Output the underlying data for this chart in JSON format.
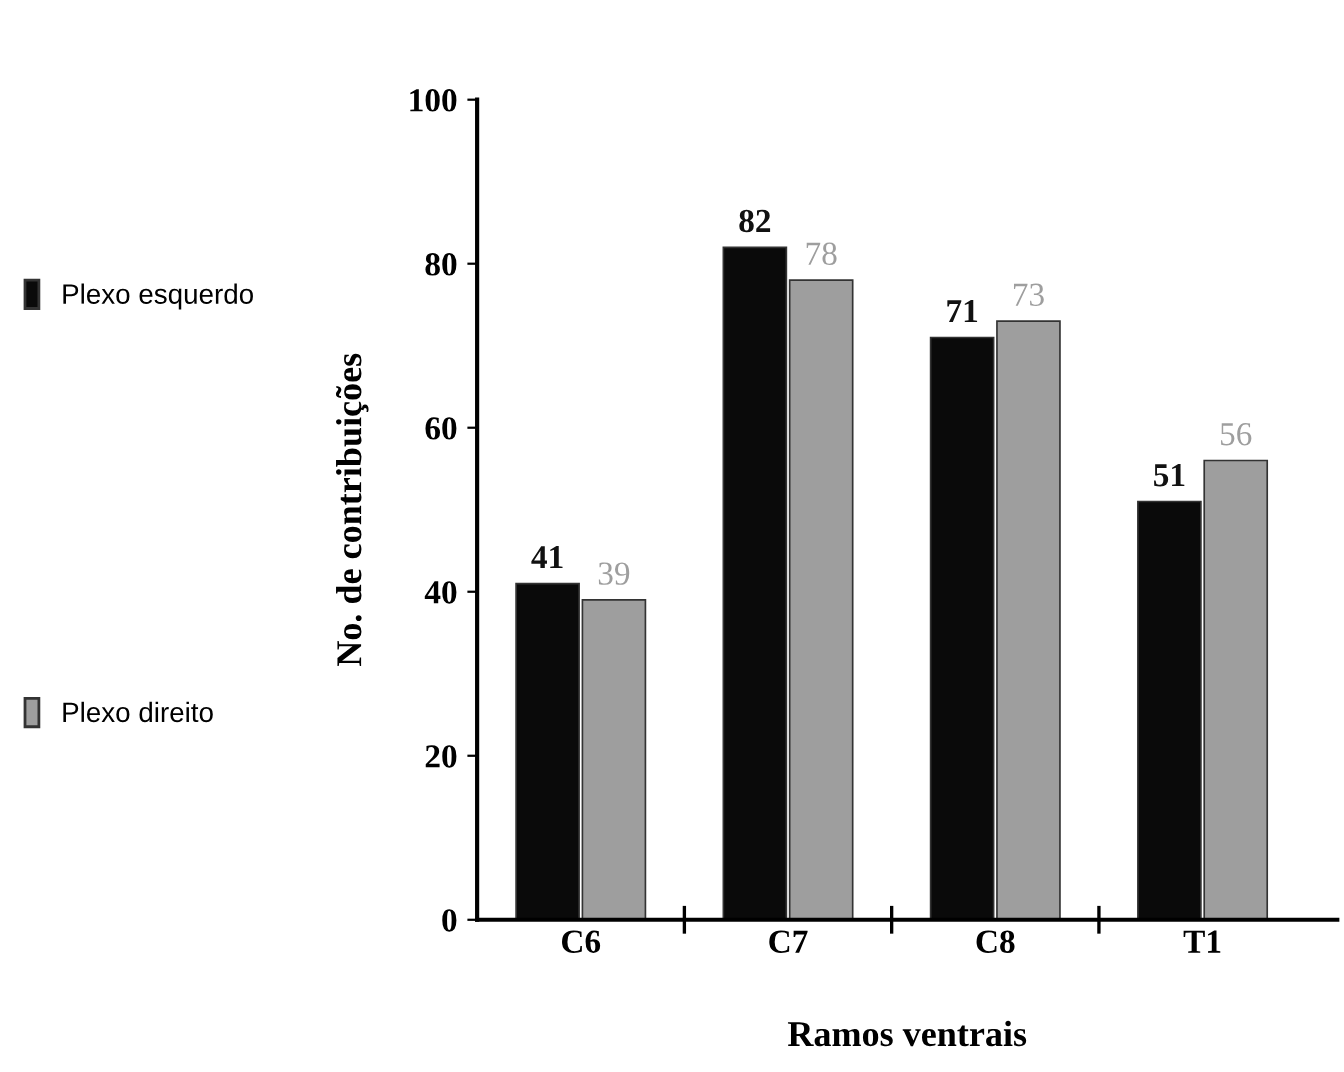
{
  "chart_data": {
    "type": "bar",
    "xlabel": "Ramos ventrais",
    "ylabel": "No. de contribuições",
    "categories": [
      "C6",
      "C7",
      "C8",
      "T1"
    ],
    "series": [
      {
        "name": "Plexo esquerdo",
        "color": "#0a0a0a",
        "values": [
          41,
          82,
          71,
          51
        ]
      },
      {
        "name": "Plexo direito",
        "color": "#9e9e9e",
        "values": [
          39,
          78,
          73,
          56
        ]
      }
    ],
    "ylim": [
      0,
      100
    ],
    "yticks": [
      0,
      20,
      40,
      60,
      80,
      100
    ],
    "grid": false,
    "legend": "left",
    "data_labels": true
  }
}
